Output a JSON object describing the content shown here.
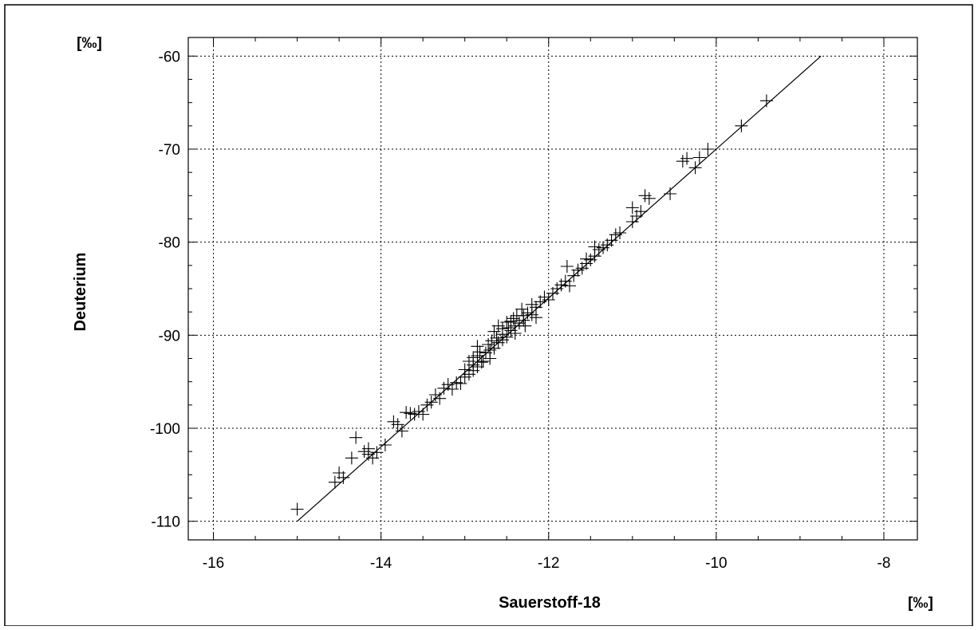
{
  "chart_data": {
    "type": "scatter",
    "title": "",
    "xlabel": "Sauerstoff-18",
    "ylabel": "Deuterium",
    "x_unit": "[‰]",
    "y_unit": "[‰]",
    "xlim": [
      -16.3,
      -7.6
    ],
    "ylim": [
      -112,
      -58
    ],
    "xticks": [
      -16,
      -14,
      -12,
      -10,
      -8
    ],
    "yticks": [
      -60,
      -70,
      -80,
      -90,
      -100,
      -110
    ],
    "grid": true,
    "legend": "none",
    "marker": "plus",
    "fit_line": {
      "x": [
        -15.0,
        -8.75
      ],
      "y": [
        -110.0,
        -60.0
      ]
    },
    "series": [
      {
        "points": [
          [
            -15.0,
            -108.7
          ],
          [
            -14.55,
            -105.8
          ],
          [
            -14.45,
            -105.3
          ],
          [
            -14.5,
            -104.8
          ],
          [
            -14.35,
            -103.2
          ],
          [
            -14.2,
            -102.5
          ],
          [
            -14.15,
            -102.8
          ],
          [
            -14.1,
            -103.2
          ],
          [
            -14.05,
            -102.6
          ],
          [
            -14.3,
            -101.0
          ],
          [
            -14.15,
            -102.2
          ],
          [
            -13.95,
            -101.8
          ],
          [
            -13.85,
            -99.3
          ],
          [
            -13.8,
            -99.6
          ],
          [
            -13.75,
            -100.3
          ],
          [
            -13.7,
            -98.3
          ],
          [
            -13.65,
            -98.4
          ],
          [
            -13.6,
            -98.5
          ],
          [
            -13.5,
            -98.5
          ],
          [
            -13.55,
            -98.2
          ],
          [
            -13.4,
            -97.2
          ],
          [
            -13.35,
            -96.4
          ],
          [
            -13.3,
            -96.8
          ],
          [
            -13.25,
            -95.7
          ],
          [
            -13.2,
            -95.3
          ],
          [
            -13.15,
            -95.8
          ],
          [
            -13.1,
            -95.1
          ],
          [
            -13.05,
            -95.2
          ],
          [
            -13.0,
            -94.5
          ],
          [
            -12.95,
            -94.2
          ],
          [
            -12.9,
            -93.8
          ],
          [
            -12.85,
            -93.4
          ],
          [
            -12.95,
            -92.8
          ],
          [
            -12.8,
            -92.9
          ],
          [
            -12.9,
            -92.4
          ],
          [
            -12.85,
            -92.2
          ],
          [
            -12.78,
            -92.8
          ],
          [
            -12.75,
            -91.9
          ],
          [
            -12.7,
            -91.6
          ],
          [
            -12.65,
            -91.4
          ],
          [
            -12.9,
            -93.2
          ],
          [
            -12.82,
            -91.8
          ],
          [
            -12.72,
            -91.0
          ],
          [
            -12.68,
            -90.6
          ],
          [
            -12.62,
            -90.3
          ],
          [
            -12.6,
            -90.8
          ],
          [
            -12.55,
            -89.9
          ],
          [
            -12.5,
            -90.2
          ],
          [
            -12.45,
            -89.5
          ],
          [
            -12.55,
            -90.5
          ],
          [
            -12.48,
            -89.2
          ],
          [
            -12.4,
            -89.0
          ],
          [
            -12.35,
            -88.7
          ],
          [
            -12.42,
            -88.2
          ],
          [
            -12.3,
            -88.4
          ],
          [
            -12.38,
            -87.9
          ],
          [
            -12.25,
            -87.6
          ],
          [
            -12.32,
            -87.2
          ],
          [
            -12.2,
            -87.8
          ],
          [
            -12.15,
            -87.0
          ],
          [
            -12.28,
            -89.0
          ],
          [
            -12.4,
            -89.8
          ],
          [
            -12.6,
            -89.0
          ],
          [
            -12.5,
            -88.6
          ],
          [
            -12.1,
            -86.4
          ],
          [
            -12.05,
            -85.9
          ],
          [
            -12.0,
            -86.2
          ],
          [
            -11.95,
            -85.5
          ],
          [
            -11.9,
            -85.0
          ],
          [
            -11.85,
            -84.6
          ],
          [
            -11.8,
            -84.2
          ],
          [
            -11.75,
            -84.7
          ],
          [
            -11.7,
            -83.6
          ],
          [
            -11.65,
            -83.0
          ],
          [
            -11.6,
            -82.8
          ],
          [
            -11.78,
            -82.6
          ],
          [
            -11.55,
            -82.3
          ],
          [
            -11.5,
            -81.9
          ],
          [
            -11.45,
            -81.5
          ],
          [
            -11.4,
            -80.8
          ],
          [
            -11.35,
            -80.6
          ],
          [
            -11.3,
            -80.3
          ],
          [
            -11.25,
            -79.8
          ],
          [
            -11.2,
            -79.2
          ],
          [
            -11.15,
            -79.0
          ],
          [
            -11.45,
            -80.5
          ],
          [
            -11.55,
            -81.8
          ],
          [
            -11.0,
            -77.8
          ],
          [
            -10.95,
            -77.2
          ],
          [
            -11.0,
            -76.3
          ],
          [
            -10.9,
            -76.7
          ],
          [
            -10.85,
            -75.0
          ],
          [
            -10.8,
            -75.3
          ],
          [
            -10.55,
            -74.8
          ],
          [
            -10.4,
            -71.3
          ],
          [
            -10.35,
            -71.0
          ],
          [
            -10.25,
            -72.0
          ],
          [
            -10.2,
            -70.9
          ],
          [
            -10.1,
            -70.0
          ],
          [
            -9.7,
            -67.5
          ],
          [
            -9.4,
            -64.8
          ],
          [
            -13.45,
            -97.5
          ],
          [
            -13.0,
            -93.7
          ],
          [
            -12.85,
            -91.2
          ],
          [
            -12.7,
            -92.5
          ],
          [
            -12.65,
            -89.6
          ],
          [
            -12.3,
            -87.9
          ],
          [
            -12.2,
            -86.7
          ],
          [
            -12.15,
            -88.1
          ],
          [
            -12.45,
            -88.5
          ],
          [
            -12.55,
            -89.3
          ]
        ]
      }
    ]
  }
}
